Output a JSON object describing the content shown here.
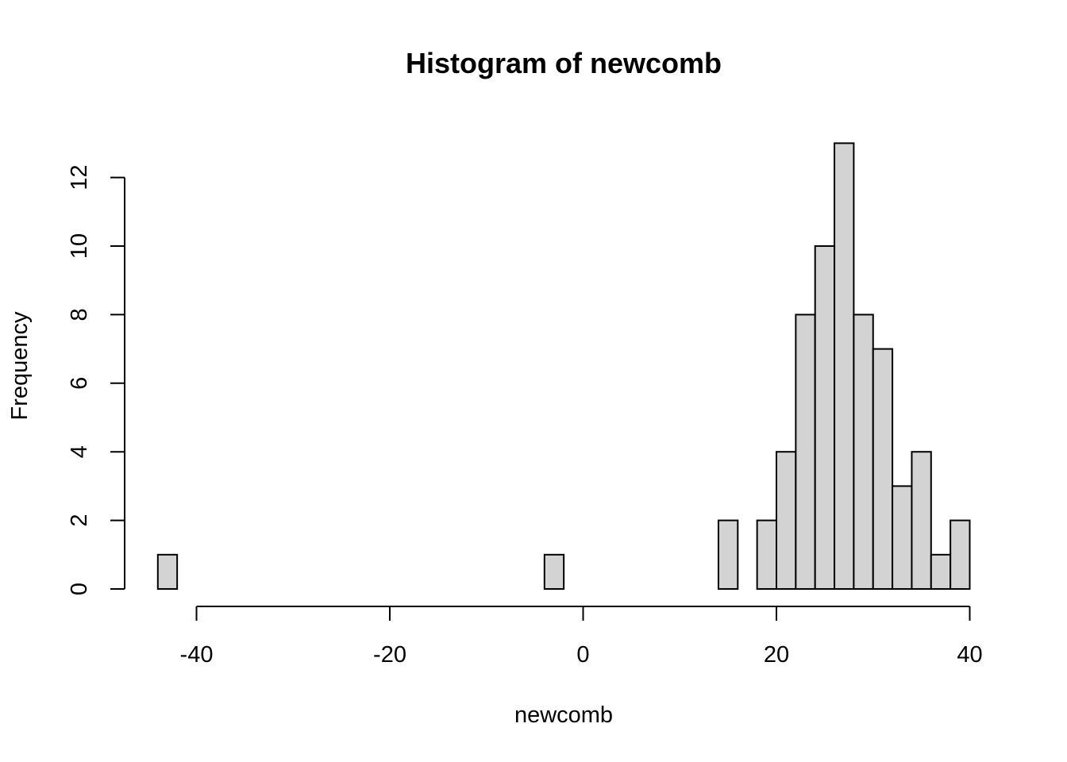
{
  "chart_data": {
    "type": "bar",
    "title": "Histogram of newcomb",
    "xlabel": "newcomb",
    "ylabel": "Frequency",
    "xlim": [
      -44,
      40
    ],
    "ylim": [
      0,
      13
    ],
    "bin_width": 2,
    "x_ticks": [
      -40,
      -20,
      0,
      20,
      40
    ],
    "y_ticks": [
      0,
      2,
      4,
      6,
      8,
      10,
      12
    ],
    "bar_fill": "#d3d3d3",
    "bar_stroke": "#000000",
    "grid": false,
    "bins": [
      {
        "start": -44,
        "end": -42,
        "count": 1
      },
      {
        "start": -42,
        "end": -40,
        "count": 0
      },
      {
        "start": -40,
        "end": -38,
        "count": 0
      },
      {
        "start": -38,
        "end": -36,
        "count": 0
      },
      {
        "start": -36,
        "end": -34,
        "count": 0
      },
      {
        "start": -34,
        "end": -32,
        "count": 0
      },
      {
        "start": -32,
        "end": -30,
        "count": 0
      },
      {
        "start": -30,
        "end": -28,
        "count": 0
      },
      {
        "start": -28,
        "end": -26,
        "count": 0
      },
      {
        "start": -26,
        "end": -24,
        "count": 0
      },
      {
        "start": -24,
        "end": -22,
        "count": 0
      },
      {
        "start": -22,
        "end": -20,
        "count": 0
      },
      {
        "start": -20,
        "end": -18,
        "count": 0
      },
      {
        "start": -18,
        "end": -16,
        "count": 0
      },
      {
        "start": -16,
        "end": -14,
        "count": 0
      },
      {
        "start": -14,
        "end": -12,
        "count": 0
      },
      {
        "start": -12,
        "end": -10,
        "count": 0
      },
      {
        "start": -10,
        "end": -8,
        "count": 0
      },
      {
        "start": -8,
        "end": -6,
        "count": 0
      },
      {
        "start": -6,
        "end": -4,
        "count": 0
      },
      {
        "start": -4,
        "end": -2,
        "count": 1
      },
      {
        "start": -2,
        "end": 0,
        "count": 0
      },
      {
        "start": 0,
        "end": 2,
        "count": 0
      },
      {
        "start": 2,
        "end": 4,
        "count": 0
      },
      {
        "start": 4,
        "end": 6,
        "count": 0
      },
      {
        "start": 6,
        "end": 8,
        "count": 0
      },
      {
        "start": 8,
        "end": 10,
        "count": 0
      },
      {
        "start": 10,
        "end": 12,
        "count": 0
      },
      {
        "start": 12,
        "end": 14,
        "count": 0
      },
      {
        "start": 14,
        "end": 16,
        "count": 2
      },
      {
        "start": 16,
        "end": 18,
        "count": 0
      },
      {
        "start": 18,
        "end": 20,
        "count": 2
      },
      {
        "start": 20,
        "end": 22,
        "count": 4
      },
      {
        "start": 22,
        "end": 24,
        "count": 8
      },
      {
        "start": 24,
        "end": 26,
        "count": 10
      },
      {
        "start": 26,
        "end": 28,
        "count": 13
      },
      {
        "start": 28,
        "end": 30,
        "count": 8
      },
      {
        "start": 30,
        "end": 32,
        "count": 7
      },
      {
        "start": 32,
        "end": 34,
        "count": 3
      },
      {
        "start": 34,
        "end": 36,
        "count": 4
      },
      {
        "start": 36,
        "end": 38,
        "count": 1
      },
      {
        "start": 38,
        "end": 40,
        "count": 2
      }
    ]
  }
}
